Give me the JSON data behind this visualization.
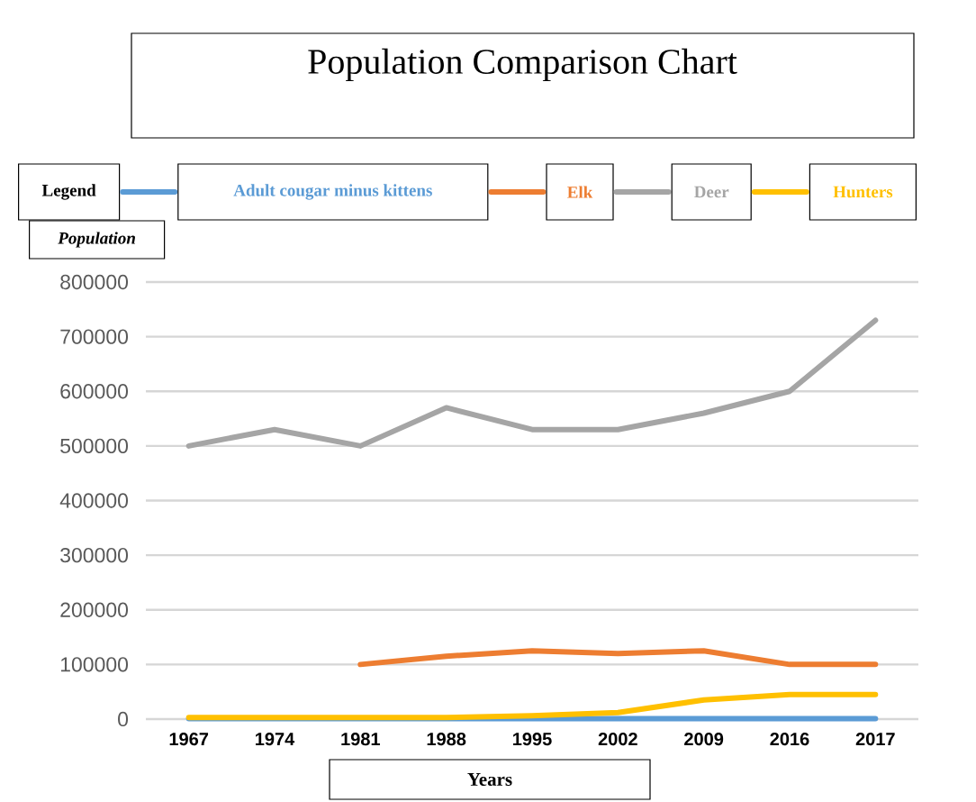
{
  "chart_data": {
    "type": "line",
    "title": "Population Comparison Chart",
    "xlabel": "Years",
    "ylabel": "Population",
    "legend_title": "Legend",
    "legend": "top",
    "categories": [
      "1967",
      "1974",
      "1981",
      "1988",
      "1995",
      "2002",
      "2009",
      "2016",
      "2017"
    ],
    "series": [
      {
        "name": "Adult cougar minus kittens",
        "color": "#5b9bd5",
        "values": [
          1000,
          1000,
          1000,
          1000,
          1000,
          1000,
          1000,
          1000,
          1000
        ]
      },
      {
        "name": "Elk",
        "color": "#ed7d31",
        "values": [
          null,
          null,
          100000,
          115000,
          125000,
          120000,
          125000,
          100000,
          100000
        ]
      },
      {
        "name": "Deer",
        "color": "#a5a5a5",
        "values": [
          500000,
          530000,
          500000,
          570000,
          530000,
          530000,
          560000,
          600000,
          730000
        ]
      },
      {
        "name": "Hunters",
        "color": "#ffc000",
        "values": [
          3000,
          3000,
          3000,
          3000,
          6000,
          12000,
          35000,
          45000,
          45000
        ]
      }
    ],
    "ylim": [
      0,
      800000
    ],
    "yticks": [
      0,
      100000,
      200000,
      300000,
      400000,
      500000,
      600000,
      700000,
      800000
    ],
    "grid": "y",
    "marker": "none",
    "line_style": "solid"
  }
}
